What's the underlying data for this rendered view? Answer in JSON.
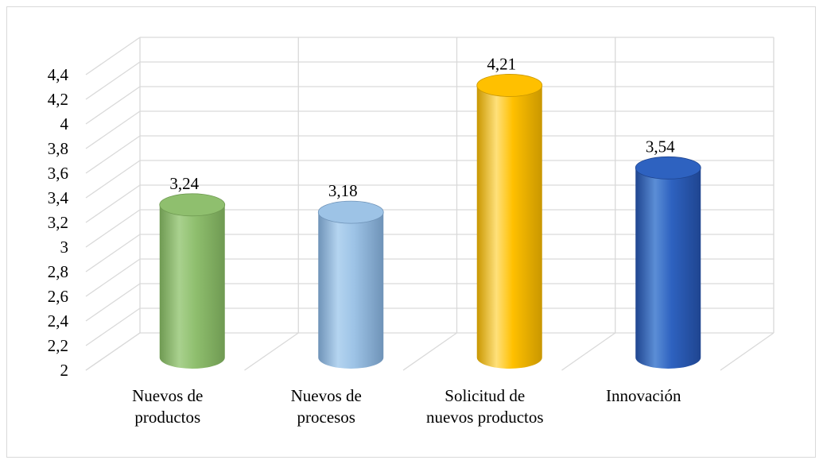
{
  "chart_data": {
    "type": "bar",
    "style": "3d-cylinder",
    "title": "",
    "xlabel": "",
    "ylabel": "",
    "categories": [
      [
        "Nuevos de",
        "productos"
      ],
      [
        "Nuevos de",
        "procesos"
      ],
      [
        "Solicitud de",
        "nuevos productos"
      ],
      [
        "Innovación"
      ]
    ],
    "values": [
      3.24,
      3.18,
      4.21,
      3.54
    ],
    "data_labels": [
      "3,24",
      "3,18",
      "4,21",
      "3,54"
    ],
    "ylim": [
      2,
      4.4
    ],
    "yticks": [
      2,
      2.2,
      2.4,
      2.6,
      2.8,
      3,
      3.2,
      3.4,
      3.6,
      3.8,
      4,
      4.2,
      4.4
    ],
    "ytick_labels": [
      "2",
      "2,2",
      "2,4",
      "2,6",
      "2,8",
      "3",
      "3,2",
      "3,4",
      "3,6",
      "3,8",
      "4",
      "4,2",
      "4,4"
    ],
    "grid": true,
    "legend": "none",
    "colors": [
      {
        "light": "#a9d18e",
        "mid": "#8fbf6e",
        "dark": "#6f9a52"
      },
      {
        "light": "#b4d4f0",
        "mid": "#9dc3e6",
        "dark": "#6f93b8"
      },
      {
        "light": "#ffe07a",
        "mid": "#ffc000",
        "dark": "#c99700"
      },
      {
        "light": "#5b8ed6",
        "mid": "#2e62c0",
        "dark": "#1f4590"
      }
    ]
  }
}
